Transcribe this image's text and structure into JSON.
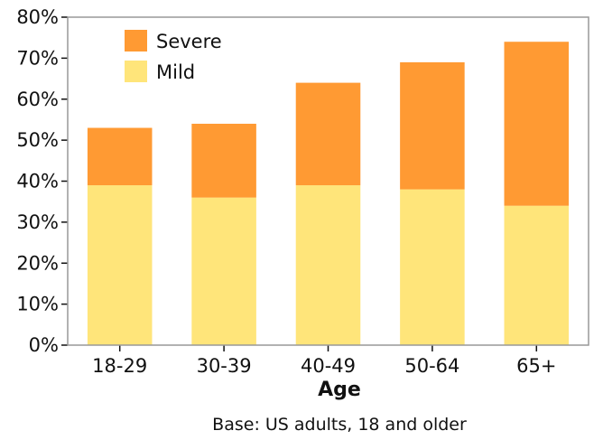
{
  "chart_data": {
    "type": "bar",
    "stacked": true,
    "categories": [
      "18-29",
      "30-39",
      "40-49",
      "50-64",
      "65+"
    ],
    "series": [
      {
        "name": "Mild",
        "values": [
          39,
          36,
          39,
          38,
          34
        ],
        "color": "#FFE57A"
      },
      {
        "name": "Severe",
        "values": [
          14,
          18,
          25,
          31,
          40
        ],
        "color": "#FF9A33"
      }
    ],
    "ylim": [
      0,
      80
    ],
    "yticks": [
      "0%",
      "10%",
      "20%",
      "30%",
      "40%",
      "50%",
      "60%",
      "70%",
      "80%"
    ],
    "xlabel": "Age",
    "note": "Base: US adults, 18 and older",
    "legend": {
      "position": "top-left",
      "order": [
        "Severe",
        "Mild"
      ]
    },
    "grid": false,
    "frame_color": "#999999"
  }
}
